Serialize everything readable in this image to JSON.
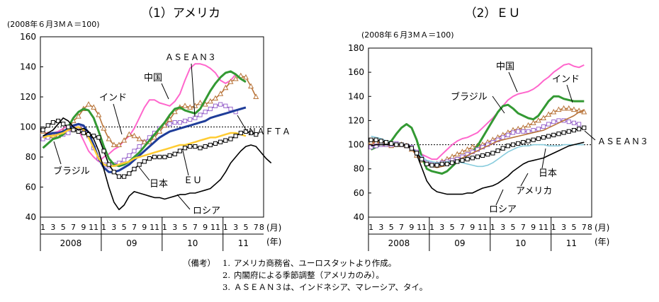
{
  "chart_data": [
    {
      "type": "line",
      "title": "（1）アメリカ",
      "ylabel": "(2008年６月3ＭＡ＝100)",
      "ylim": [
        40,
        160
      ],
      "yticks": [
        40,
        60,
        80,
        100,
        120,
        140,
        160
      ],
      "reference_line": 100,
      "xunit": "(月)",
      "xunit2": "(年)",
      "x_month_labels": [
        "1",
        "3",
        "5",
        "7",
        "9",
        "11",
        "1",
        "3",
        "5",
        "7",
        "9",
        "11",
        "1",
        "3",
        "5",
        "7",
        "9",
        "11",
        "1",
        "3",
        "5",
        "7",
        "8"
      ],
      "year_labels": [
        "2008",
        "09",
        "10",
        "11"
      ],
      "series": [
        {
          "name": "中国",
          "color": "#ff66cc",
          "values": [
            96,
            96,
            96,
            97,
            99,
            101,
            101,
            98,
            91,
            84,
            80,
            77,
            80,
            82,
            85,
            87,
            91,
            94,
            99,
            106,
            113,
            118,
            118,
            116,
            115,
            114,
            117,
            122,
            131,
            139,
            142,
            142,
            141,
            139,
            136,
            131,
            129,
            131,
            135
          ]
        },
        {
          "name": "ASEAN3",
          "color": "#9966cc",
          "values": [
            92,
            93,
            94,
            95,
            95,
            96,
            99,
            100,
            99,
            94,
            86,
            79,
            75,
            74,
            75,
            76,
            78,
            81,
            84,
            87,
            90,
            93,
            96,
            99,
            101,
            102,
            103,
            103,
            104,
            105,
            106,
            108,
            110,
            112,
            114,
            115,
            114,
            112,
            110
          ]
        },
        {
          "name": "インド",
          "color": "#b8743a",
          "values": [
            97,
            95,
            94,
            94,
            97,
            99,
            104,
            107,
            112,
            115,
            113,
            108,
            99,
            92,
            88,
            88,
            91,
            95,
            94,
            92,
            90,
            90,
            93,
            97,
            101,
            105,
            110,
            113,
            114,
            113,
            114,
            116,
            115,
            117,
            119,
            122,
            126,
            130,
            132,
            134,
            133,
            127,
            120
          ]
        },
        {
          "name": "ブラジル",
          "color": "#339933",
          "values": [
            86,
            89,
            92,
            93,
            95,
            100,
            106,
            110,
            112,
            111,
            106,
            97,
            87,
            79,
            75,
            74,
            75,
            77,
            80,
            83,
            87,
            91,
            95,
            99,
            103,
            108,
            112,
            113,
            111,
            110,
            109,
            112,
            118,
            124,
            129,
            133,
            136,
            137,
            135,
            132,
            130
          ]
        },
        {
          "name": "NAFTA",
          "color": "#1f3d99",
          "values": [
            93,
            95,
            96,
            96,
            97,
            99,
            101,
            102,
            101,
            96,
            88,
            79,
            73,
            70,
            70,
            71,
            73,
            75,
            78,
            81,
            84,
            87,
            90,
            93,
            95,
            97,
            98,
            99,
            100,
            101,
            102,
            103,
            104,
            106,
            107,
            108,
            109,
            110,
            111,
            112,
            113
          ]
        },
        {
          "name": "EU",
          "color": "#ffcc33",
          "values": [
            93,
            94,
            94,
            95,
            96,
            98,
            99,
            100,
            98,
            93,
            86,
            79,
            75,
            74,
            74,
            75,
            76,
            77,
            79,
            80,
            81,
            82,
            83,
            84,
            85,
            86,
            87,
            88,
            88,
            89,
            90,
            91,
            92,
            93,
            93,
            94,
            95,
            96,
            96,
            95,
            94
          ]
        },
        {
          "name": "日本",
          "color": "#000000",
          "values": [
            98,
            101,
            103,
            104,
            102,
            100,
            98,
            97,
            96,
            95,
            94,
            93,
            84,
            75,
            70,
            67,
            67,
            69,
            72,
            75,
            77,
            79,
            80,
            80,
            80,
            81,
            82,
            84,
            86,
            87,
            87,
            86,
            87,
            88,
            89,
            90,
            91,
            92,
            94,
            96,
            97,
            96,
            95
          ]
        },
        {
          "name": "ロシア",
          "color": "#000000",
          "values": [
            94,
            96,
            98,
            102,
            106,
            104,
            100,
            98,
            99,
            97,
            92,
            84,
            72,
            60,
            50,
            45,
            48,
            54,
            57,
            56,
            55,
            54,
            53,
            53,
            52,
            53,
            54,
            55,
            55,
            56,
            56,
            57,
            58,
            59,
            62,
            65,
            70,
            76,
            80,
            84,
            87,
            88,
            87,
            83,
            79,
            76
          ]
        }
      ]
    },
    {
      "type": "line",
      "title": "（2）ＥＵ",
      "ylabel": "(2008年６月3ＭＡ＝100)",
      "ylim": [
        40,
        180
      ],
      "yticks": [
        40,
        60,
        80,
        100,
        120,
        140,
        160,
        180
      ],
      "reference_line": 100,
      "xunit": "(月)",
      "xunit2": "(年)",
      "x_month_labels": [
        "1",
        "3",
        "5",
        "7",
        "9",
        "11",
        "1",
        "3",
        "5",
        "7",
        "9",
        "11",
        "1",
        "3",
        "5",
        "7",
        "9",
        "11",
        "1",
        "3",
        "5",
        "7",
        "8"
      ],
      "year_labels": [
        "2008",
        "09",
        "10",
        "11"
      ],
      "series": [
        {
          "name": "中国",
          "color": "#ff66cc",
          "values": [
            101,
            101,
            100,
            99,
            100,
            101,
            100,
            99,
            97,
            95,
            92,
            90,
            88,
            88,
            92,
            96,
            100,
            103,
            105,
            106,
            108,
            110,
            114,
            118,
            122,
            127,
            132,
            137,
            140,
            142,
            143,
            144,
            146,
            149,
            153,
            156,
            160,
            163,
            166,
            167,
            165,
            164,
            166
          ]
        },
        {
          "name": "インド",
          "color": "#b8743a",
          "values": [
            102,
            102,
            101,
            100,
            99,
            100,
            100,
            99,
            96,
            91,
            87,
            84,
            84,
            84,
            86,
            88,
            90,
            92,
            94,
            96,
            98,
            99,
            100,
            102,
            104,
            106,
            108,
            110,
            112,
            113,
            114,
            116,
            118,
            120,
            122,
            125,
            127,
            129,
            130,
            130,
            129,
            128,
            127
          ]
        },
        {
          "name": "ブラジル",
          "color": "#339933",
          "values": [
            96,
            98,
            100,
            101,
            103,
            109,
            114,
            117,
            114,
            104,
            90,
            80,
            78,
            77,
            76,
            78,
            82,
            86,
            89,
            91,
            94,
            99,
            106,
            113,
            120,
            127,
            132,
            133,
            130,
            126,
            124,
            122,
            121,
            124,
            130,
            136,
            140,
            140,
            138,
            137,
            136,
            136,
            136
          ]
        },
        {
          "name": "ASEAN3",
          "color": "#9966cc",
          "values": [
            98,
            99,
            100,
            100,
            100,
            101,
            100,
            99,
            98,
            94,
            89,
            85,
            84,
            84,
            85,
            86,
            87,
            88,
            90,
            92,
            94,
            96,
            98,
            100,
            102,
            104,
            106,
            108,
            110,
            111,
            111,
            111,
            112,
            113,
            115,
            117,
            119,
            120,
            120,
            119,
            118,
            117
          ]
        },
        {
          "name": "日本",
          "color": "#b8743a",
          "values": [
            103,
            103,
            102,
            101,
            101,
            100,
            100,
            99,
            97,
            93,
            88,
            84,
            82,
            81,
            82,
            83,
            85,
            87,
            89,
            91,
            93,
            95,
            97,
            99,
            101,
            103,
            104,
            105,
            106,
            107,
            108,
            109,
            110,
            111,
            112,
            114,
            116,
            118,
            120,
            122,
            124,
            127,
            129
          ]
        },
        {
          "name": "アメリカ",
          "color": "#88ccdd",
          "values": [
            107,
            106,
            105,
            103,
            102,
            100,
            100,
            99,
            97,
            94,
            90,
            87,
            86,
            85,
            85,
            86,
            86,
            86,
            85,
            84,
            83,
            82,
            82,
            83,
            85,
            88,
            91,
            94,
            96,
            98,
            99,
            99,
            100,
            100,
            100,
            99,
            99,
            99,
            100,
            100,
            100,
            100,
            100
          ]
        },
        {
          "name": "ロシア",
          "color": "#000000",
          "values": [
            99,
            100,
            100,
            100,
            100,
            100,
            100,
            100,
            98,
            92,
            81,
            70,
            64,
            61,
            60,
            59,
            59,
            59,
            59,
            60,
            60,
            62,
            64,
            65,
            66,
            68,
            71,
            74,
            78,
            81,
            84,
            86,
            87,
            88,
            89,
            91,
            93,
            95,
            97,
            99,
            100,
            101,
            102
          ]
        },
        {
          "name": "",
          "color": "#000000",
          "values": [
            104,
            104,
            103,
            102,
            101,
            100,
            100,
            99,
            97,
            93,
            88,
            84,
            83,
            83,
            84,
            84,
            85,
            86,
            87,
            88,
            89,
            90,
            91,
            92,
            93,
            95,
            97,
            99,
            100,
            101,
            102,
            103,
            104,
            105,
            106,
            107,
            108,
            109,
            110,
            111,
            112,
            113,
            114
          ]
        }
      ]
    }
  ],
  "labels": {
    "c1": {
      "china": "中国",
      "asean": "ＡＳＥＡＮ３",
      "india": "インド",
      "nafta": "ＮＡＦＴＡ",
      "brazil": "ブラジル",
      "japan": "日本",
      "eu": "ＥＵ",
      "russia": "ロシア"
    },
    "c2": {
      "china": "中国",
      "india": "インド",
      "brazil": "ブラジル",
      "asean": "ＡＳＥＡＮ３",
      "japan": "日本",
      "usa": "アメリカ",
      "russia": "ロシア"
    }
  },
  "notes": {
    "prefix": "（備考）",
    "items": [
      {
        "num": "1.",
        "text": "アメリカ商務省、ユーロスタットより作成。"
      },
      {
        "num": "2.",
        "text": "内閣府による季節調整（アメリカのみ）。"
      },
      {
        "num": "3.",
        "text": "ＡＳＥＡＮ３は、インドネシア、マレーシア、タイ。"
      }
    ]
  }
}
